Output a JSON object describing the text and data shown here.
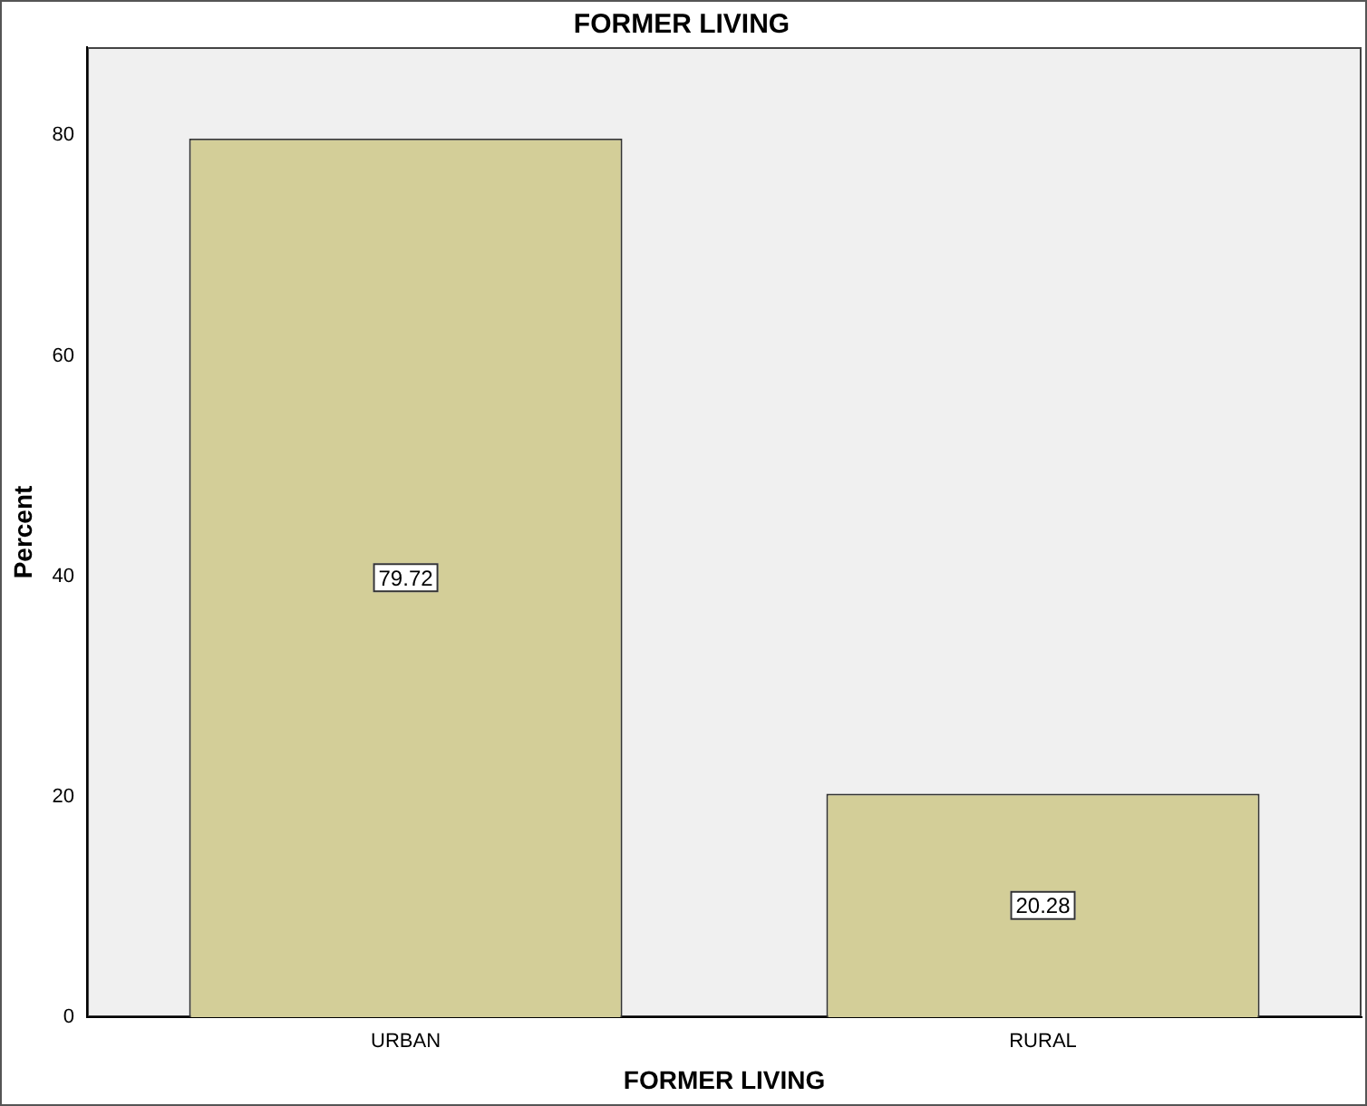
{
  "chart_data": {
    "type": "bar",
    "title": "FORMER LIVING",
    "xlabel": "FORMER LIVING",
    "ylabel": "Percent",
    "categories": [
      "URBAN",
      "RURAL"
    ],
    "values": [
      79.72,
      20.28
    ],
    "color": "#d3ce98",
    "ylim": [
      0,
      88
    ],
    "yticks": [
      0,
      20,
      40,
      60,
      80
    ],
    "grid": false,
    "legend": false,
    "data_labels": true
  }
}
